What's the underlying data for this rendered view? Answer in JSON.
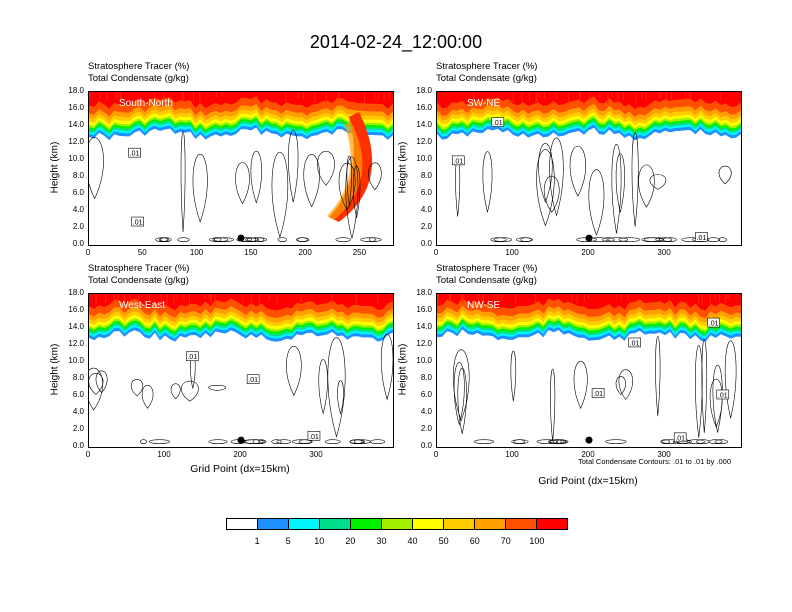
{
  "title": "2014-02-24_12:00:00",
  "colorbar": {
    "colors": [
      "#ffffff",
      "#1e90ff",
      "#00f5ff",
      "#00e08c",
      "#00f000",
      "#a0f000",
      "#ffff00",
      "#ffcc00",
      "#ffa000",
      "#ff5000",
      "#ff0000"
    ],
    "labels": [
      "1",
      "5",
      "10",
      "20",
      "30",
      "40",
      "50",
      "60",
      "70",
      "100"
    ]
  },
  "contour_note": "Total Condensate Contours: .01 to .01 by .000",
  "chart_data": [
    {
      "type": "heatmap",
      "line1": "Stratosphere Tracer   (%)",
      "line2": "Total Condensate   (g/kg)",
      "section": "South-North",
      "ylabel": "Height (km)",
      "xlabel": "",
      "xlim": [
        0,
        280
      ],
      "ylim": [
        0,
        18
      ],
      "xticks": [
        "0",
        "50",
        "100",
        "150",
        "200",
        "250"
      ],
      "yticks": [
        "0.0",
        "2.0",
        "4.0",
        "6.0",
        "8.0",
        "10.0",
        "12.0",
        "14.0",
        "16.0",
        "18.0"
      ],
      "contour_labels": [
        ".01",
        ".01"
      ],
      "marker_x": 140
    },
    {
      "type": "heatmap",
      "line1": "Stratosphere Tracer   (%)",
      "line2": "Total Condensate   (g/kg)",
      "section": "SW-NE",
      "ylabel": "Height (km)",
      "xlabel": "",
      "xlim": [
        0,
        400
      ],
      "ylim": [
        0,
        18
      ],
      "xticks": [
        "0",
        "100",
        "200",
        "300"
      ],
      "yticks": [
        "0.0",
        "2.0",
        "4.0",
        "6.0",
        "8.0",
        "10.0",
        "12.0",
        "14.0",
        "16.0",
        "18.0"
      ],
      "contour_labels": [
        ".01",
        ".01",
        ".01"
      ],
      "marker_x": 200
    },
    {
      "type": "heatmap",
      "line1": "Stratosphere Tracer   (%)",
      "line2": "Total Condensate   (g/kg)",
      "section": "West-East",
      "ylabel": "Height (km)",
      "xlabel": "Grid Point (dx=15km)",
      "xlim": [
        0,
        400
      ],
      "ylim": [
        0,
        18
      ],
      "xticks": [
        "0",
        "100",
        "200",
        "300"
      ],
      "yticks": [
        "0.0",
        "2.0",
        "4.0",
        "6.0",
        "8.0",
        "10.0",
        "12.0",
        "14.0",
        "16.0",
        "18.0"
      ],
      "contour_labels": [
        ".01",
        ".01",
        ".01"
      ],
      "marker_x": 200
    },
    {
      "type": "heatmap",
      "line1": "Stratosphere Tracer   (%)",
      "line2": "Total Condensate   (g/kg)",
      "section": "NW-SE",
      "ylabel": "Height (km)",
      "xlabel": "Grid Point (dx=15km)",
      "xlim": [
        0,
        400
      ],
      "ylim": [
        0,
        18
      ],
      "xticks": [
        "0",
        "100",
        "200",
        "300"
      ],
      "yticks": [
        "0.0",
        "2.0",
        "4.0",
        "6.0",
        "8.0",
        "10.0",
        "12.0",
        "14.0",
        "16.0",
        "18.0"
      ],
      "contour_labels": [
        ".01",
        ".01",
        ".01",
        ".01",
        ".01"
      ],
      "marker_x": 200
    }
  ]
}
